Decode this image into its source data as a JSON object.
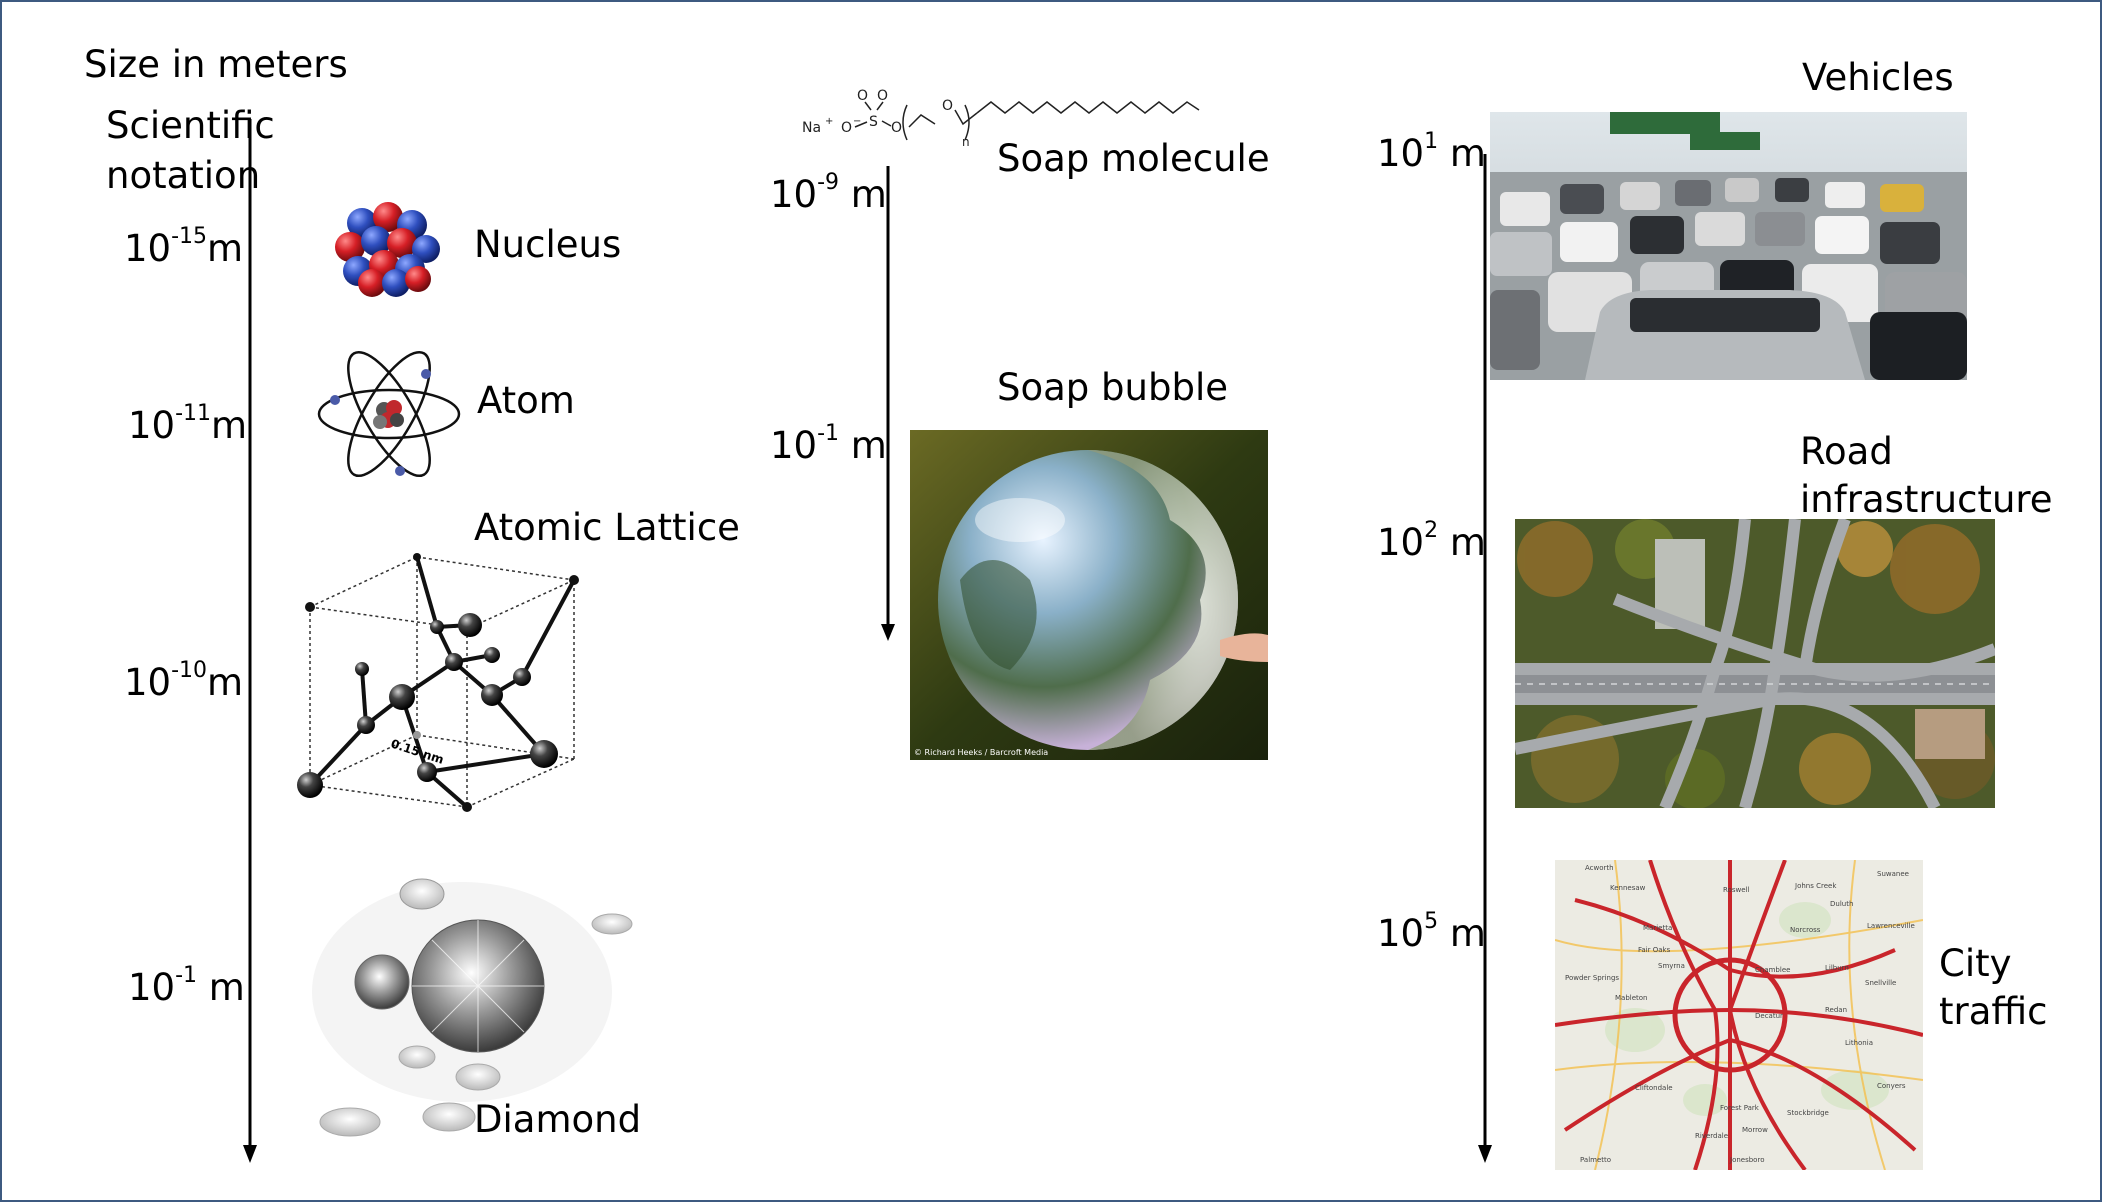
{
  "header": {
    "size_label": "Size in meters"
  },
  "left": {
    "notation_label_1": "Scientific",
    "notation_label_2": "notation",
    "scales": [
      {
        "base": "10",
        "exp": "-15",
        "unit": "m"
      },
      {
        "base": "10",
        "exp": "-11",
        "unit": "m"
      },
      {
        "base": "10",
        "exp": "-10",
        "unit": "m"
      },
      {
        "base": "10",
        "exp": "-1",
        "unit": " m"
      }
    ],
    "labels": {
      "nucleus": "Nucleus",
      "atom": "Atom",
      "lattice": "Atomic Lattice",
      "diamond": "Diamond"
    },
    "lattice_dimension": "0.15 nm"
  },
  "middle": {
    "scales": [
      {
        "base": "10",
        "exp": "-9",
        "unit": " m"
      },
      {
        "base": "10",
        "exp": "-1",
        "unit": " m"
      }
    ],
    "labels": {
      "molecule": "Soap molecule",
      "bubble": "Soap bubble"
    },
    "molecule_formula": {
      "na": "Na",
      "plus": "+",
      "o_minus": "O",
      "s": "S",
      "o": "O",
      "n": "n"
    },
    "photo_credit": "© Richard Heeks / Barcroft Media"
  },
  "right": {
    "scales": [
      {
        "base": "10",
        "exp": "1",
        "unit": " m"
      },
      {
        "base": "10",
        "exp": "2",
        "unit": " m"
      },
      {
        "base": "10",
        "exp": "5",
        "unit": " m"
      }
    ],
    "labels": {
      "vehicles": "Vehicles",
      "road_1": "Road",
      "road_2": "infrastructure",
      "city_1": "City",
      "city_2": "traffic"
    },
    "map_places": [
      "Acworth",
      "Kennesaw",
      "Roswell",
      "Johns Creek",
      "Suwanee",
      "Duluth",
      "Marietta",
      "Fair Oaks",
      "Norcross",
      "Lawrenceville",
      "Smyrna",
      "Chamblee",
      "Lilburn",
      "Powder Springs",
      "Mableton",
      "Snellville",
      "Decatur",
      "Redan",
      "Forest Park",
      "Riverdale",
      "Jonesboro",
      "Stockbridge",
      "Conyers",
      "Cliftondale",
      "Palmetto",
      "Morrow",
      "Lithonia"
    ]
  },
  "colors": {
    "frame": "#3d5a80",
    "proton": "#d61f26",
    "neutron": "#2f4fbf"
  }
}
